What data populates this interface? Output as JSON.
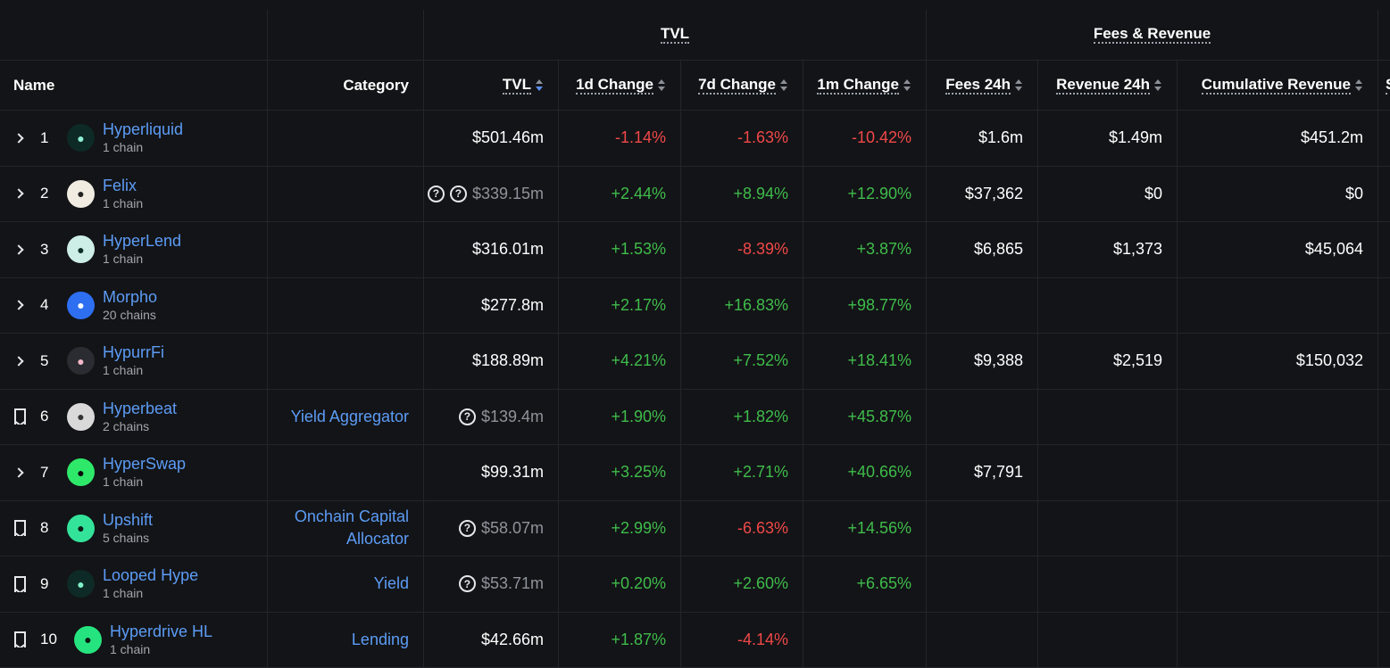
{
  "groups": {
    "tvl": "TVL",
    "fees": "Fees & Revenue"
  },
  "headers": {
    "name": "Name",
    "category": "Category",
    "tvl": "TVL",
    "d1": "1d Change",
    "d7": "7d Change",
    "m1": "1m Change",
    "fees": "Fees 24h",
    "rev": "Revenue 24h",
    "cum": "Cumulative Revenue",
    "more": "S"
  },
  "rows": [
    {
      "rank": "1",
      "control": "chevron",
      "name": "Hyperliquid",
      "chains": "1 chain",
      "category": "",
      "tvl": "$501.46m",
      "tvl_q": 0,
      "d1": "-1.14%",
      "d7": "-1.63%",
      "m1": "-10.42%",
      "fees": "$1.6m",
      "rev": "$1.49m",
      "cum": "$451.2m",
      "logo_bg": "#0d2a26",
      "logo_fg": "#8ff0d8"
    },
    {
      "rank": "2",
      "control": "chevron",
      "name": "Felix",
      "chains": "1 chain",
      "category": "",
      "tvl": "$339.15m",
      "tvl_q": 2,
      "d1": "+2.44%",
      "d7": "+8.94%",
      "m1": "+12.90%",
      "fees": "$37,362",
      "rev": "$0",
      "cum": "$0",
      "logo_bg": "#f1ece2",
      "logo_fg": "#222222"
    },
    {
      "rank": "3",
      "control": "chevron",
      "name": "HyperLend",
      "chains": "1 chain",
      "category": "",
      "tvl": "$316.01m",
      "tvl_q": 0,
      "d1": "+1.53%",
      "d7": "-8.39%",
      "m1": "+3.87%",
      "fees": "$6,865",
      "rev": "$1,373",
      "cum": "$45,064",
      "logo_bg": "#cdeee6",
      "logo_fg": "#0b2d28"
    },
    {
      "rank": "4",
      "control": "chevron",
      "name": "Morpho",
      "chains": "20 chains",
      "category": "",
      "tvl": "$277.8m",
      "tvl_q": 0,
      "d1": "+2.17%",
      "d7": "+16.83%",
      "m1": "+98.77%",
      "fees": "",
      "rev": "",
      "cum": "",
      "logo_bg": "#2e6ff2",
      "logo_fg": "#ffffff"
    },
    {
      "rank": "5",
      "control": "chevron",
      "name": "HypurrFi",
      "chains": "1 chain",
      "category": "",
      "tvl": "$188.89m",
      "tvl_q": 0,
      "d1": "+4.21%",
      "d7": "+7.52%",
      "m1": "+18.41%",
      "fees": "$9,388",
      "rev": "$2,519",
      "cum": "$150,032",
      "logo_bg": "#2a2c31",
      "logo_fg": "#f3b8c9"
    },
    {
      "rank": "6",
      "control": "bookmark",
      "name": "Hyperbeat",
      "chains": "2 chains",
      "category": "Yield Aggregator",
      "tvl": "$139.4m",
      "tvl_q": 1,
      "d1": "+1.90%",
      "d7": "+1.82%",
      "m1": "+45.87%",
      "fees": "",
      "rev": "",
      "cum": "",
      "logo_bg": "#d9d9d9",
      "logo_fg": "#333333"
    },
    {
      "rank": "7",
      "control": "chevron",
      "name": "HyperSwap",
      "chains": "1 chain",
      "category": "",
      "tvl": "$99.31m",
      "tvl_q": 0,
      "d1": "+3.25%",
      "d7": "+2.71%",
      "m1": "+40.66%",
      "fees": "$7,791",
      "rev": "",
      "cum": "",
      "logo_bg": "#2ee86a",
      "logo_fg": "#0a0a0a"
    },
    {
      "rank": "8",
      "control": "bookmark",
      "name": "Upshift",
      "chains": "5 chains",
      "category": "Onchain Capital Allocator",
      "tvl": "$58.07m",
      "tvl_q": 1,
      "d1": "+2.99%",
      "d7": "-6.63%",
      "m1": "+14.56%",
      "fees": "",
      "rev": "",
      "cum": "",
      "logo_bg": "#33e39a",
      "logo_fg": "#0b1a14"
    },
    {
      "rank": "9",
      "control": "bookmark",
      "name": "Looped Hype",
      "chains": "1 chain",
      "category": "Yield",
      "tvl": "$53.71m",
      "tvl_q": 1,
      "d1": "+0.20%",
      "d7": "+2.60%",
      "m1": "+6.65%",
      "fees": "",
      "rev": "",
      "cum": "",
      "logo_bg": "#0e2a26",
      "logo_fg": "#7ff0c8"
    },
    {
      "rank": "10",
      "control": "bookmark",
      "name": "Hyperdrive HL",
      "chains": "1 chain",
      "category": "Lending",
      "tvl": "$42.66m",
      "tvl_q": 0,
      "d1": "+1.87%",
      "d7": "-4.14%",
      "m1": "",
      "fees": "",
      "rev": "",
      "cum": "",
      "logo_bg": "#25e47f",
      "logo_fg": "#0a1a10"
    }
  ],
  "icons": {
    "expand": "chevron-right-icon",
    "bookmark": "bookmark-icon",
    "info": "question-circle-icon",
    "sort": "sort-icon"
  },
  "colors": {
    "background": "#131417",
    "link": "#5c9cf5",
    "negative": "#f04848",
    "positive": "#3fbc4b",
    "muted": "#8f939b"
  }
}
